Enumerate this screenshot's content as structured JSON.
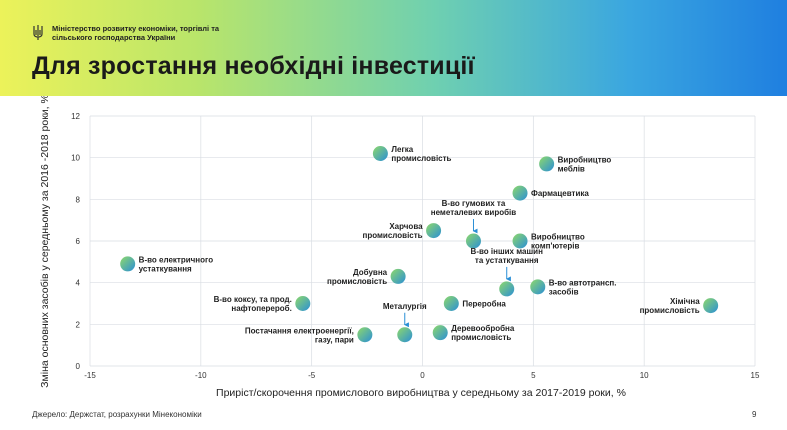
{
  "header": {
    "ministry_line1": "Міністерство розвитку економіки, торгівлі та",
    "ministry_line2": "сільського господарства України",
    "title": "Для зростання необхідні інвестиції",
    "logo_icon": "trident-icon"
  },
  "colors": {
    "gradient_start": "#ecf25a",
    "gradient_end": "#1f7fe0",
    "marker_start": "#8fd96a",
    "marker_end": "#2a8fd6",
    "grid": "#d9dde3"
  },
  "footer": {
    "source": "Джерело: Держстат, розрахунки Мінекономіки",
    "page_number": "9"
  },
  "chart_data": {
    "type": "scatter",
    "xlabel": "Приріст/скорочення промислового виробництва у середньому за 2017-2019 роки, %",
    "ylabel": "Зміна основних засобів у середньому за 2016 -2018 роки, %",
    "xlim": [
      -15,
      15
    ],
    "ylim": [
      0,
      12
    ],
    "x_ticks": [
      -15,
      -10,
      -5,
      0,
      5,
      10,
      15
    ],
    "y_ticks": [
      0,
      2,
      4,
      6,
      8,
      10,
      12
    ],
    "grid": true,
    "points": [
      {
        "x": -13.3,
        "y": 4.9,
        "label": [
          "В-во електричного",
          "устаткування"
        ],
        "pos": "right"
      },
      {
        "x": -5.4,
        "y": 3.0,
        "label": [
          "В-во коксу, та прод.",
          "нафтоперероб."
        ],
        "pos": "left"
      },
      {
        "x": -2.6,
        "y": 1.5,
        "label": [
          "Постачання електроенергії,",
          "газу, пари"
        ],
        "pos": "left"
      },
      {
        "x": -0.8,
        "y": 1.5,
        "label": [
          "Металургія"
        ],
        "pos": "above-arrow"
      },
      {
        "x": -1.9,
        "y": 10.2,
        "label": [
          "Легка",
          "промисловість"
        ],
        "pos": "right"
      },
      {
        "x": 0.5,
        "y": 6.5,
        "label": [
          "Харчова",
          "промисловість"
        ],
        "pos": "left"
      },
      {
        "x": -1.1,
        "y": 4.3,
        "label": [
          "Добувна",
          "промисловість"
        ],
        "pos": "left"
      },
      {
        "x": 0.8,
        "y": 1.6,
        "label": [
          "Деревообробна",
          "промисловість"
        ],
        "pos": "right"
      },
      {
        "x": 1.3,
        "y": 3.0,
        "label": [
          "Переробна"
        ],
        "pos": "right"
      },
      {
        "x": 2.3,
        "y": 6.0,
        "label": [
          "В-во гумових та",
          "неметалевих виробів"
        ],
        "pos": "above-arrow"
      },
      {
        "x": 3.8,
        "y": 3.7,
        "label": [
          "В-во інших машин",
          "та устаткування"
        ],
        "pos": "above-arrow"
      },
      {
        "x": 4.4,
        "y": 8.3,
        "label": [
          "Фармацевтика"
        ],
        "pos": "right"
      },
      {
        "x": 4.4,
        "y": 6.0,
        "label": [
          "Виробництво",
          "комп'ютерів"
        ],
        "pos": "right"
      },
      {
        "x": 5.6,
        "y": 9.7,
        "label": [
          "Виробництво",
          "меблів"
        ],
        "pos": "right"
      },
      {
        "x": 5.2,
        "y": 3.8,
        "label": [
          "В-во автотрансп.",
          "засобів"
        ],
        "pos": "right"
      },
      {
        "x": 13.0,
        "y": 2.9,
        "label": [
          "Хімічна",
          "промисловість"
        ],
        "pos": "left"
      }
    ]
  }
}
